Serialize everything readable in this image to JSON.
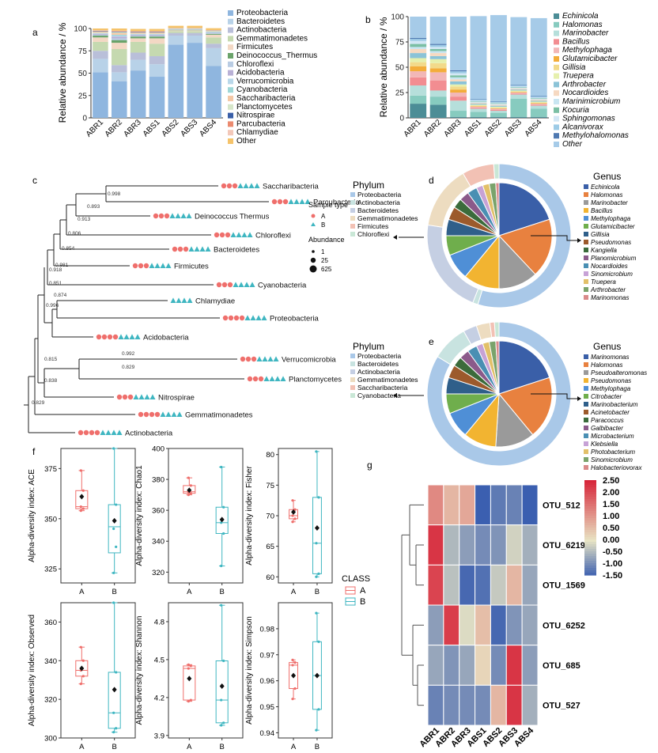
{
  "colors": {
    "phylum": [
      "#8fb6df",
      "#b8d2e8",
      "#b9bfd9",
      "#c5d9b0",
      "#f3d8c4",
      "#6aa36a",
      "#b9cce3",
      "#b9b1d6",
      "#b9d8ea",
      "#9fd7d7",
      "#f4c8a6",
      "#d6e6c9",
      "#3a5fa8",
      "#eb8a6f",
      "#f3c8b9",
      "#f5c36a"
    ],
    "genus": [
      "#4c8d96",
      "#87cbbf",
      "#b6dfdb",
      "#f28d91",
      "#f2b7b7",
      "#f3ad3a",
      "#f2da8a",
      "#e6f0ad",
      "#8bc3d7",
      "#f6d9c1",
      "#c9e6f2",
      "#7bbfa4",
      "#d3e7f5",
      "#9dcbe6",
      "#4f79b1",
      "#a6cbe8"
    ],
    "sampleA": "#ef6f6c",
    "sampleB": "#3fb6c1",
    "heat_low": "#3b5fb0",
    "heat_mid": "#e8e4c4",
    "heat_high": "#d7263a"
  },
  "chart_data": [
    {
      "panel": "a",
      "type": "bar",
      "stacked": true,
      "ylabel": "Relative abundance / %",
      "ylim": [
        0,
        100
      ],
      "yticks": [
        "0",
        "25",
        "50",
        "75",
        "100"
      ],
      "categories": [
        "ABR1",
        "ABR2",
        "ABR3",
        "ABS1",
        "ABS2",
        "ABS3",
        "ABS4"
      ],
      "series": [
        {
          "name": "Proteobacteria",
          "values": [
            51,
            41,
            53,
            46,
            82,
            84,
            58
          ]
        },
        {
          "name": "Bacteroidetes",
          "values": [
            15,
            10,
            12,
            14,
            10,
            8,
            20
          ]
        },
        {
          "name": "Actinobacteria",
          "values": [
            9,
            8,
            8,
            9,
            3,
            3,
            5
          ]
        },
        {
          "name": "Gemmatimonadetes",
          "values": [
            10,
            18,
            12,
            14,
            2,
            2,
            7
          ]
        },
        {
          "name": "Firmicutes",
          "values": [
            5,
            7,
            4,
            6,
            1,
            1,
            3
          ]
        },
        {
          "name": "Deinococcus_Thermus",
          "values": [
            2,
            3,
            2,
            2,
            0.5,
            0.5,
            1
          ]
        },
        {
          "name": "Chloroflexi",
          "values": [
            1,
            2,
            1,
            1,
            0.5,
            0.5,
            1
          ]
        },
        {
          "name": "Acidobacteria",
          "values": [
            1,
            2,
            1,
            1,
            0.3,
            0.3,
            0.5
          ]
        },
        {
          "name": "Verrucomicrobia",
          "values": [
            0.5,
            1,
            0.5,
            0.5,
            0.2,
            0.2,
            0.5
          ]
        },
        {
          "name": "Cyanobacteria",
          "values": [
            0.5,
            1,
            0.5,
            0.5,
            0.2,
            0.2,
            0.5
          ]
        },
        {
          "name": "Saccharibacteria",
          "values": [
            1,
            2,
            1,
            1,
            0.3,
            0.3,
            0.5
          ]
        },
        {
          "name": "Planctomycetes",
          "values": [
            0.5,
            1,
            0.5,
            0.5,
            0.2,
            0.2,
            0.5
          ]
        },
        {
          "name": "Nitrospirae",
          "values": [
            0.5,
            0.5,
            0.5,
            0.5,
            0.1,
            0.1,
            0.2
          ]
        },
        {
          "name": "Parcubacteria",
          "values": [
            0.5,
            0.5,
            0.5,
            0.5,
            0.1,
            0.1,
            0.2
          ]
        },
        {
          "name": "Chlamydiae",
          "values": [
            0.5,
            0.5,
            0.5,
            0.5,
            0.1,
            0.1,
            0.2
          ]
        },
        {
          "name": "Other",
          "values": [
            2,
            2.5,
            2.5,
            2.5,
            2.5,
            2.5,
            2.2
          ]
        }
      ]
    },
    {
      "panel": "b",
      "type": "bar",
      "stacked": true,
      "ylabel": "Relative abundance / %",
      "ylim": [
        0,
        100
      ],
      "yticks": [
        "0",
        "25",
        "50",
        "75",
        "100"
      ],
      "categories": [
        "ABR1",
        "ABR2",
        "ABR3",
        "ABS1",
        "ABS2",
        "ABS3",
        "ABS4"
      ],
      "series": [
        {
          "name": "Echinicola",
          "values": [
            14,
            13,
            1,
            1,
            1,
            1,
            1
          ]
        },
        {
          "name": "Halomonas",
          "values": [
            8,
            8,
            6,
            5,
            4,
            18,
            8
          ]
        },
        {
          "name": "Marinobacter",
          "values": [
            10,
            6,
            10,
            3,
            2,
            4,
            3
          ]
        },
        {
          "name": "Bacillus",
          "values": [
            8,
            10,
            4,
            1,
            1,
            1,
            1
          ]
        },
        {
          "name": "Methylophaga",
          "values": [
            6,
            8,
            4,
            1,
            1,
            1,
            1
          ]
        },
        {
          "name": "Glutamicibacter",
          "values": [
            5,
            4,
            3,
            0.5,
            0.5,
            0.5,
            0.5
          ]
        },
        {
          "name": "Gillisia",
          "values": [
            4,
            5,
            3,
            0.5,
            0.5,
            0.5,
            0.5
          ]
        },
        {
          "name": "Truepera",
          "values": [
            4,
            4,
            2,
            1,
            1,
            1,
            1
          ]
        },
        {
          "name": "Arthrobacter",
          "values": [
            5,
            3,
            3,
            1,
            1,
            1,
            1
          ]
        },
        {
          "name": "Nocardioides",
          "values": [
            4,
            3,
            2,
            1,
            1,
            1,
            1
          ]
        },
        {
          "name": "Marinimicrobium",
          "values": [
            2,
            2,
            2,
            1,
            1,
            1,
            1
          ]
        },
        {
          "name": "Kocuria",
          "values": [
            3,
            2,
            2,
            0.5,
            0.5,
            0.5,
            0.5
          ]
        },
        {
          "name": "Sphingomonas",
          "values": [
            3,
            2,
            2,
            0.5,
            0.5,
            0.5,
            0.5
          ]
        },
        {
          "name": "Alcanivorax",
          "values": [
            2,
            2,
            2,
            1,
            1,
            1,
            1
          ]
        },
        {
          "name": "Methylohalomonas",
          "values": [
            1,
            1,
            1,
            0.5,
            0.5,
            0.5,
            0.5
          ]
        },
        {
          "name": "Other",
          "values": [
            21,
            27,
            53,
            82,
            85,
            67,
            77
          ]
        }
      ]
    },
    {
      "panel": "c",
      "type": "tree",
      "legend_title_sample": "Sample type",
      "legend_sample": [
        {
          "label": "A",
          "shape": "circle"
        },
        {
          "label": "B",
          "shape": "triangle"
        }
      ],
      "legend_title_size": "Abundance",
      "legend_size": [
        "1",
        "25",
        "625"
      ],
      "leaves": [
        {
          "name": "Saccharibacteria",
          "a": 3,
          "b": 4
        },
        {
          "name": "Parcubacteria",
          "a": 3,
          "b": 4
        },
        {
          "name": "Deinococcus Thermus",
          "a": 3,
          "b": 4
        },
        {
          "name": "Chloroflexi",
          "a": 3,
          "b": 4
        },
        {
          "name": "Bacteroidetes",
          "a": 3,
          "b": 4
        },
        {
          "name": "Firmicutes",
          "a": 3,
          "b": 4
        },
        {
          "name": "Cyanobacteria",
          "a": 3,
          "b": 4
        },
        {
          "name": "Chlamydiae",
          "a": 0,
          "b": 4
        },
        {
          "name": "Proteobacteria",
          "a": 4,
          "b": 4
        },
        {
          "name": "Acidobacteria",
          "a": 4,
          "b": 4
        },
        {
          "name": "Verrucomicrobia",
          "a": 3,
          "b": 4
        },
        {
          "name": "Planctomycetes",
          "a": 3,
          "b": 4
        },
        {
          "name": "Nitrospirae",
          "a": 3,
          "b": 4
        },
        {
          "name": "Gemmatimonadetes",
          "a": 4,
          "b": 4
        },
        {
          "name": "Actinobacteria",
          "a": 4,
          "b": 4
        }
      ],
      "bootstrap": [
        "0.998",
        "0.893",
        "0.913",
        "0.806",
        "0.854",
        "0.981",
        "0.918",
        "0.851",
        "0.874",
        "0.996",
        "0.992",
        "0.815",
        "0.829",
        "0.838",
        "0.829"
      ]
    },
    {
      "panel": "d",
      "type": "pie",
      "inner_title": "Phylum",
      "inner_labels": [
        "Proteobacteria",
        "Actinobacteria",
        "Bacteroidetes",
        "Gemmatimonadetes",
        "Firmicutes",
        "Chloroflexi"
      ],
      "inner_values": [
        46,
        1,
        18,
        12,
        6,
        1
      ],
      "genus_title": "Genus",
      "genus_labels": [
        "Echinicola",
        "Halomonas",
        "Marinobacter",
        "Bacillus",
        "Methylophaga",
        "Glutamicibacter",
        "Gillisia",
        "Pseudomonas",
        "Kangiella",
        "Planomicrobium",
        "Nocardioides",
        "Sinomicrobium",
        "Truepera",
        "Arthrobacter",
        "Marinomonas"
      ],
      "genus_values": [
        20,
        18,
        12,
        11,
        8,
        6,
        5,
        4,
        3,
        3,
        3,
        2,
        2,
        2,
        1
      ]
    },
    {
      "panel": "e",
      "type": "pie",
      "inner_title": "Phylum",
      "inner_labels": [
        "Proteobacteria",
        "Bacteroidetes",
        "Actinobacteria",
        "Gemmatimonadetes",
        "Saccharibacteria",
        "Cyanobacteria"
      ],
      "inner_values": [
        82,
        8,
        3,
        3,
        1,
        1
      ],
      "genus_title": "Genus",
      "genus_labels": [
        "Marinomonas",
        "Halomonas",
        "Pseudoalteromonas",
        "Pseudomonas",
        "Methylophaga",
        "Citrobacter",
        "Marinobacterium",
        "Acinetobacter",
        "Paracoccus",
        "Galbibacter",
        "Microbacterium",
        "Klebsiella",
        "Photobacterium",
        "Sinomicrobium",
        "Halobacteriovorax"
      ],
      "genus_values": [
        20,
        19,
        12,
        10,
        8,
        6,
        5,
        4,
        3,
        3,
        3,
        2,
        2,
        2,
        1
      ]
    },
    {
      "panel": "f",
      "type": "boxplot",
      "legend_title": "CLASS",
      "groups": [
        "A",
        "B"
      ],
      "plots": [
        {
          "ylabel": "Alpha-diversity index: ACE",
          "ylim": [
            318,
            385
          ],
          "yticks": [
            325,
            350,
            375
          ],
          "A": {
            "min": 354,
            "q1": 355,
            "median": 356,
            "q3": 364,
            "max": 374,
            "mean": 361,
            "points": [
              354,
              355,
              356,
              364,
              374
            ]
          },
          "B": {
            "min": 323,
            "q1": 333,
            "median": 346,
            "q3": 357,
            "max": 385,
            "mean": 349,
            "points": [
              323,
              336,
              345,
              357,
              385
            ]
          }
        },
        {
          "ylabel": "Alpha-diversity index: Chao1",
          "ylim": [
            313,
            400
          ],
          "yticks": [
            320,
            340,
            360,
            380,
            400
          ],
          "A": {
            "min": 370,
            "q1": 371,
            "median": 372,
            "q3": 376,
            "max": 381,
            "mean": 373,
            "points": [
              370,
              371,
              372,
              376,
              381
            ]
          },
          "B": {
            "min": 324,
            "q1": 345,
            "median": 352,
            "q3": 362,
            "max": 388,
            "mean": 354,
            "points": [
              324,
              345,
              352,
              362,
              388
            ]
          }
        },
        {
          "ylabel": "Alpha-diversity index: Fisher",
          "ylim": [
            59,
            81
          ],
          "yticks": [
            60,
            65,
            70,
            75,
            80
          ],
          "A": {
            "min": 69,
            "q1": 69.5,
            "median": 70,
            "q3": 71,
            "max": 72.5,
            "mean": 70.6,
            "points": [
              69,
              69.5,
              70,
              71,
              72.5
            ]
          },
          "B": {
            "min": 60,
            "q1": 60.5,
            "median": 65.5,
            "q3": 73,
            "max": 80.5,
            "mean": 68,
            "points": [
              60,
              60.5,
              65.5,
              73,
              80.5
            ]
          }
        },
        {
          "ylabel": "Alpha-diversity index: Observed",
          "ylim": [
            300,
            370
          ],
          "yticks": [
            300,
            320,
            340,
            360
          ],
          "A": {
            "min": 328,
            "q1": 332,
            "median": 335,
            "q3": 340,
            "max": 347,
            "mean": 336,
            "points": [
              328,
              332,
              335,
              340,
              347
            ]
          },
          "B": {
            "min": 303,
            "q1": 305,
            "median": 313,
            "q3": 334,
            "max": 370,
            "mean": 325,
            "points": [
              303,
              305,
              313,
              334,
              370
            ]
          }
        },
        {
          "ylabel": "Alpha-diversity index: Shannon",
          "ylim": [
            3.88,
            4.95
          ],
          "yticks": [
            3.9,
            4.2,
            4.5,
            4.8
          ],
          "A": {
            "min": 4.17,
            "q1": 4.18,
            "median": 4.43,
            "q3": 4.45,
            "max": 4.46,
            "mean": 4.35,
            "points": [
              4.17,
              4.18,
              4.43,
              4.45,
              4.46
            ]
          },
          "B": {
            "min": 3.98,
            "q1": 4.0,
            "median": 4.18,
            "q3": 4.49,
            "max": 4.93,
            "mean": 4.29,
            "points": [
              3.98,
              4.0,
              4.18,
              4.49,
              4.93
            ]
          }
        },
        {
          "ylabel": "Alpha-diversity index: Simpson",
          "ylim": [
            0.938,
            0.99
          ],
          "yticks": [
            0.94,
            0.95,
            0.96,
            0.97,
            0.98
          ],
          "A": {
            "min": 0.953,
            "q1": 0.957,
            "median": 0.966,
            "q3": 0.967,
            "max": 0.968,
            "mean": 0.962,
            "points": [
              0.953,
              0.957,
              0.966,
              0.967,
              0.968
            ]
          },
          "B": {
            "min": 0.941,
            "q1": 0.949,
            "median": 0.962,
            "q3": 0.975,
            "max": 0.986,
            "mean": 0.962,
            "points": [
              0.941,
              0.949,
              0.962,
              0.975,
              0.986
            ]
          }
        }
      ]
    },
    {
      "panel": "g",
      "type": "heatmap",
      "columns": [
        "ABR1",
        "ABR2",
        "ABR3",
        "ABS1",
        "ABS2",
        "ABS3",
        "ABS4"
      ],
      "rows": [
        "OTU_512",
        "OTU_6219",
        "OTU_1569",
        "OTU_6252",
        "OTU_685",
        "OTU_527"
      ],
      "values": [
        [
          1.2,
          0.6,
          0.8,
          -1.5,
          -1.2,
          -1.1,
          -1.6
        ],
        [
          2.3,
          -0.5,
          -0.8,
          -1.0,
          -0.9,
          -0.2,
          -0.6
        ],
        [
          2.1,
          -0.4,
          -1.4,
          -1.3,
          -0.3,
          0.6,
          -0.7
        ],
        [
          -0.8,
          2.2,
          -0.1,
          0.5,
          -1.4,
          -0.9,
          -0.7
        ],
        [
          -0.7,
          -0.9,
          -0.7,
          0.2,
          -1.0,
          2.3,
          -0.8
        ],
        [
          -1.1,
          -1.0,
          -1.0,
          -1.0,
          0.6,
          2.3,
          -0.6
        ]
      ],
      "colorbar_ticks": [
        "2.50",
        "2.00",
        "1.50",
        "1.00",
        "0.50",
        "0.00",
        "-0.50",
        "-1.00",
        "-1.50"
      ],
      "vmin": -1.5,
      "vmax": 2.5
    }
  ]
}
